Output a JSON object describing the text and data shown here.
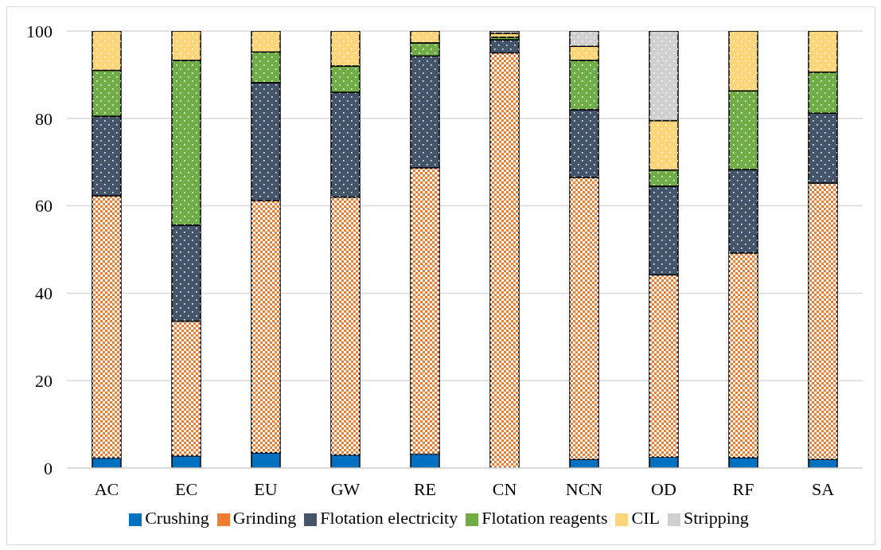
{
  "chart_data": {
    "type": "bar",
    "stacked": true,
    "categories": [
      "AC",
      "EC",
      "EU",
      "GW",
      "RE",
      "CN",
      "NCN",
      "OD",
      "RF",
      "SA"
    ],
    "series": [
      {
        "name": "Crushing",
        "color": "#0070c0",
        "values": [
          2.3,
          2.8,
          3.5,
          3,
          3.2,
          null,
          2,
          2.5,
          2.4,
          2
        ]
      },
      {
        "name": "Grinding",
        "color": "#ed7d31",
        "values": [
          60,
          30.8,
          57.7,
          59,
          65.5,
          95,
          64.5,
          41.7,
          46.8,
          63.2
        ]
      },
      {
        "name": "Flotation electricity",
        "color": "#44546a",
        "values": [
          18.2,
          22,
          27,
          24,
          25.6,
          3,
          15.5,
          20.3,
          19.1,
          16
        ]
      },
      {
        "name": "Flotation reagents",
        "color": "#70ad47",
        "values": [
          10.5,
          37.7,
          7,
          6,
          3,
          0.6,
          11.3,
          3.7,
          18,
          9.4
        ]
      },
      {
        "name": "CIL",
        "color": "#ffd579",
        "values": [
          9,
          6.7,
          4.8,
          8,
          2.7,
          0.9,
          3.2,
          11.3,
          13.7,
          9.4
        ]
      },
      {
        "name": "Stripping",
        "color": "#d0d0d0",
        "values": [
          null,
          null,
          null,
          null,
          null,
          0.5,
          3.5,
          20.5,
          null,
          null
        ]
      }
    ],
    "ylim": [
      0,
      100
    ],
    "yticks": [
      0,
      20,
      40,
      60,
      80,
      100
    ],
    "grid": "y",
    "legend": "bottom"
  }
}
